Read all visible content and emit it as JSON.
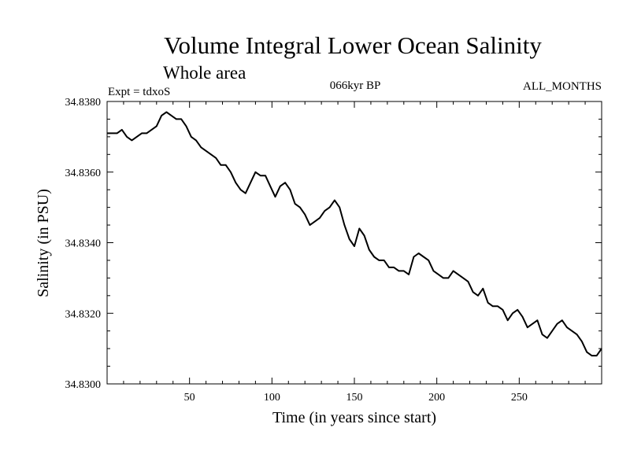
{
  "chart_data": {
    "type": "line",
    "title": "Volume Integral Lower Ocean Salinity",
    "subtitle": "Whole area",
    "annotations": {
      "experiment": "Expt = tdxoS",
      "period": "066kyr BP",
      "months": "ALL_MONTHS"
    },
    "xlabel": "Time (in years since start)",
    "ylabel": "Salinity (in PSU)",
    "xlim": [
      0,
      300
    ],
    "ylim": [
      34.83,
      34.838
    ],
    "xticks": [
      50,
      100,
      150,
      200,
      250
    ],
    "yticks": [
      "34.8300",
      "34.8320",
      "34.8340",
      "34.8360",
      "34.8380"
    ],
    "grid": false,
    "series": [
      {
        "x": [
          0,
          3,
          6,
          9,
          12,
          15,
          18,
          21,
          24,
          27,
          30,
          33,
          36,
          39,
          42,
          45,
          48,
          51,
          54,
          57,
          60,
          63,
          66,
          69,
          72,
          75,
          78,
          81,
          84,
          87,
          90,
          93,
          96,
          99,
          102,
          105,
          108,
          111,
          114,
          117,
          120,
          123,
          126,
          129,
          132,
          135,
          138,
          141,
          144,
          147,
          150,
          153,
          156,
          159,
          162,
          165,
          168,
          171,
          174,
          177,
          180,
          183,
          186,
          189,
          192,
          195,
          198,
          201,
          204,
          207,
          210,
          213,
          216,
          219,
          222,
          225,
          228,
          231,
          234,
          237,
          240,
          243,
          246,
          249,
          252,
          255,
          258,
          261,
          264,
          267,
          270,
          273,
          276,
          279,
          282,
          285,
          288,
          291,
          294,
          297,
          300
        ],
        "y": [
          34.8371,
          34.8371,
          34.8371,
          34.8372,
          34.837,
          34.8369,
          34.837,
          34.8371,
          34.8371,
          34.8372,
          34.8373,
          34.8376,
          34.8377,
          34.8376,
          34.8375,
          34.8375,
          34.8373,
          34.837,
          34.8369,
          34.8367,
          34.8366,
          34.8365,
          34.8364,
          34.8362,
          34.8362,
          34.836,
          34.8357,
          34.8355,
          34.8354,
          34.8357,
          34.836,
          34.8359,
          34.8359,
          34.8356,
          34.8353,
          34.8356,
          34.8357,
          34.8355,
          34.8351,
          34.835,
          34.8348,
          34.8345,
          34.8346,
          34.8347,
          34.8349,
          34.835,
          34.8352,
          34.835,
          34.8345,
          34.8341,
          34.8339,
          34.8344,
          34.8342,
          34.8338,
          34.8336,
          34.8335,
          34.8335,
          34.8333,
          34.8333,
          34.8332,
          34.8332,
          34.8331,
          34.8336,
          34.8337,
          34.8336,
          34.8335,
          34.8332,
          34.8331,
          34.833,
          34.833,
          34.8332,
          34.8331,
          34.833,
          34.8329,
          34.8326,
          34.8325,
          34.8327,
          34.8323,
          34.8322,
          34.8322,
          34.8321,
          34.8318,
          34.832,
          34.8321,
          34.8319,
          34.8316,
          34.8317,
          34.8318,
          34.8314,
          34.8313,
          34.8315,
          34.8317,
          34.8318,
          34.8316,
          34.8315,
          34.8314,
          34.8312,
          34.8309,
          34.8308,
          34.8308,
          34.831
        ]
      }
    ]
  }
}
